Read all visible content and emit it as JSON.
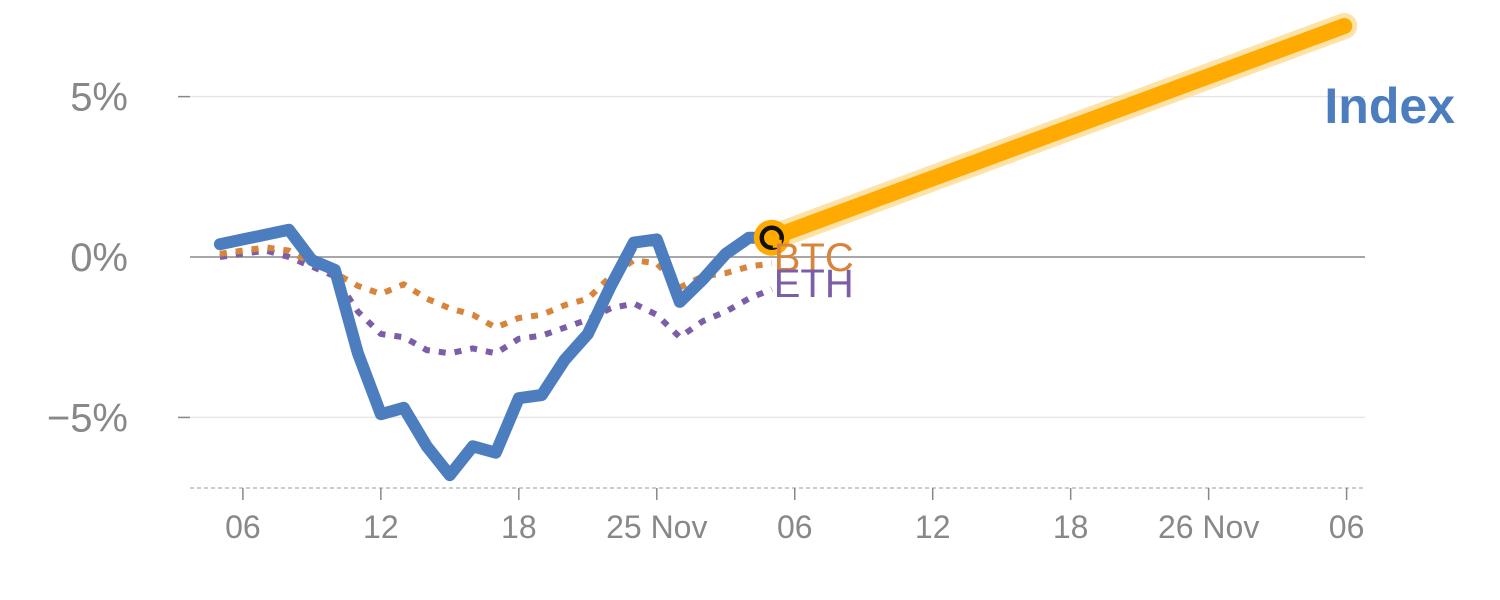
{
  "chart_data": {
    "type": "line",
    "title": "",
    "xlabel": "",
    "ylabel": "",
    "ylim": [
      -7.2,
      7.7
    ],
    "yticks": [
      {
        "value": 5,
        "label": "5%"
      },
      {
        "value": 0,
        "label": "0%"
      },
      {
        "value": -5,
        "label": "−5%"
      }
    ],
    "xlim": [
      -1.3,
      49.8
    ],
    "xticks": [
      {
        "x": 1,
        "label": "06"
      },
      {
        "x": 7,
        "label": "12"
      },
      {
        "x": 13,
        "label": "18"
      },
      {
        "x": 19,
        "label": "25 Nov"
      },
      {
        "x": 25,
        "label": "06"
      },
      {
        "x": 31,
        "label": "12"
      },
      {
        "x": 37,
        "label": "18"
      },
      {
        "x": 43,
        "label": "26 Nov"
      },
      {
        "x": 49,
        "label": "06"
      }
    ],
    "series": [
      {
        "name": "Index",
        "color": "#4c7ebf",
        "style": "solid",
        "x": [
          0,
          1,
          2,
          3,
          4,
          5,
          6,
          7,
          8,
          9,
          10,
          11,
          12,
          13,
          14,
          15,
          16,
          17,
          18,
          19,
          20,
          21,
          22,
          23,
          24
        ],
        "y": [
          0.4,
          0.55,
          0.7,
          0.85,
          -0.1,
          -0.4,
          -3.0,
          -4.9,
          -4.7,
          -5.9,
          -6.8,
          -5.9,
          -6.1,
          -4.4,
          -4.3,
          -3.2,
          -2.4,
          -0.9,
          0.45,
          0.55,
          -1.4,
          -0.7,
          0.1,
          0.6,
          0.6
        ]
      },
      {
        "name": "BTC",
        "color": "#d9843b",
        "style": "dotted",
        "x": [
          0,
          1,
          2,
          3,
          4,
          5,
          6,
          7,
          8,
          9,
          10,
          11,
          12,
          13,
          14,
          15,
          16,
          17,
          18,
          19,
          20,
          21,
          22,
          23,
          24
        ],
        "y": [
          0.1,
          0.2,
          0.3,
          0.2,
          -0.2,
          -0.5,
          -0.9,
          -1.15,
          -0.85,
          -1.3,
          -1.6,
          -1.8,
          -2.2,
          -1.9,
          -1.8,
          -1.5,
          -1.3,
          -0.6,
          -0.1,
          -0.2,
          -0.95,
          -0.6,
          -0.5,
          -0.3,
          -0.2
        ]
      },
      {
        "name": "ETH",
        "color": "#7b5ea7",
        "style": "dotted",
        "x": [
          0,
          1,
          2,
          3,
          4,
          5,
          6,
          7,
          8,
          9,
          10,
          11,
          12,
          13,
          14,
          15,
          16,
          17,
          18,
          19,
          20,
          21,
          22,
          23,
          24
        ],
        "y": [
          0.0,
          0.1,
          0.2,
          0.0,
          -0.3,
          -0.6,
          -1.7,
          -2.4,
          -2.5,
          -2.9,
          -3.0,
          -2.85,
          -3.0,
          -2.55,
          -2.45,
          -2.2,
          -1.95,
          -1.6,
          -1.45,
          -1.8,
          -2.5,
          -2.0,
          -1.7,
          -1.3,
          -1.0
        ]
      }
    ],
    "forecast": {
      "name": "Index",
      "color": "#ffaa00",
      "x": [
        24,
        48.9
      ],
      "y": [
        0.6,
        7.2
      ]
    },
    "highlight_point": {
      "x": 24,
      "y": 0.6
    }
  }
}
